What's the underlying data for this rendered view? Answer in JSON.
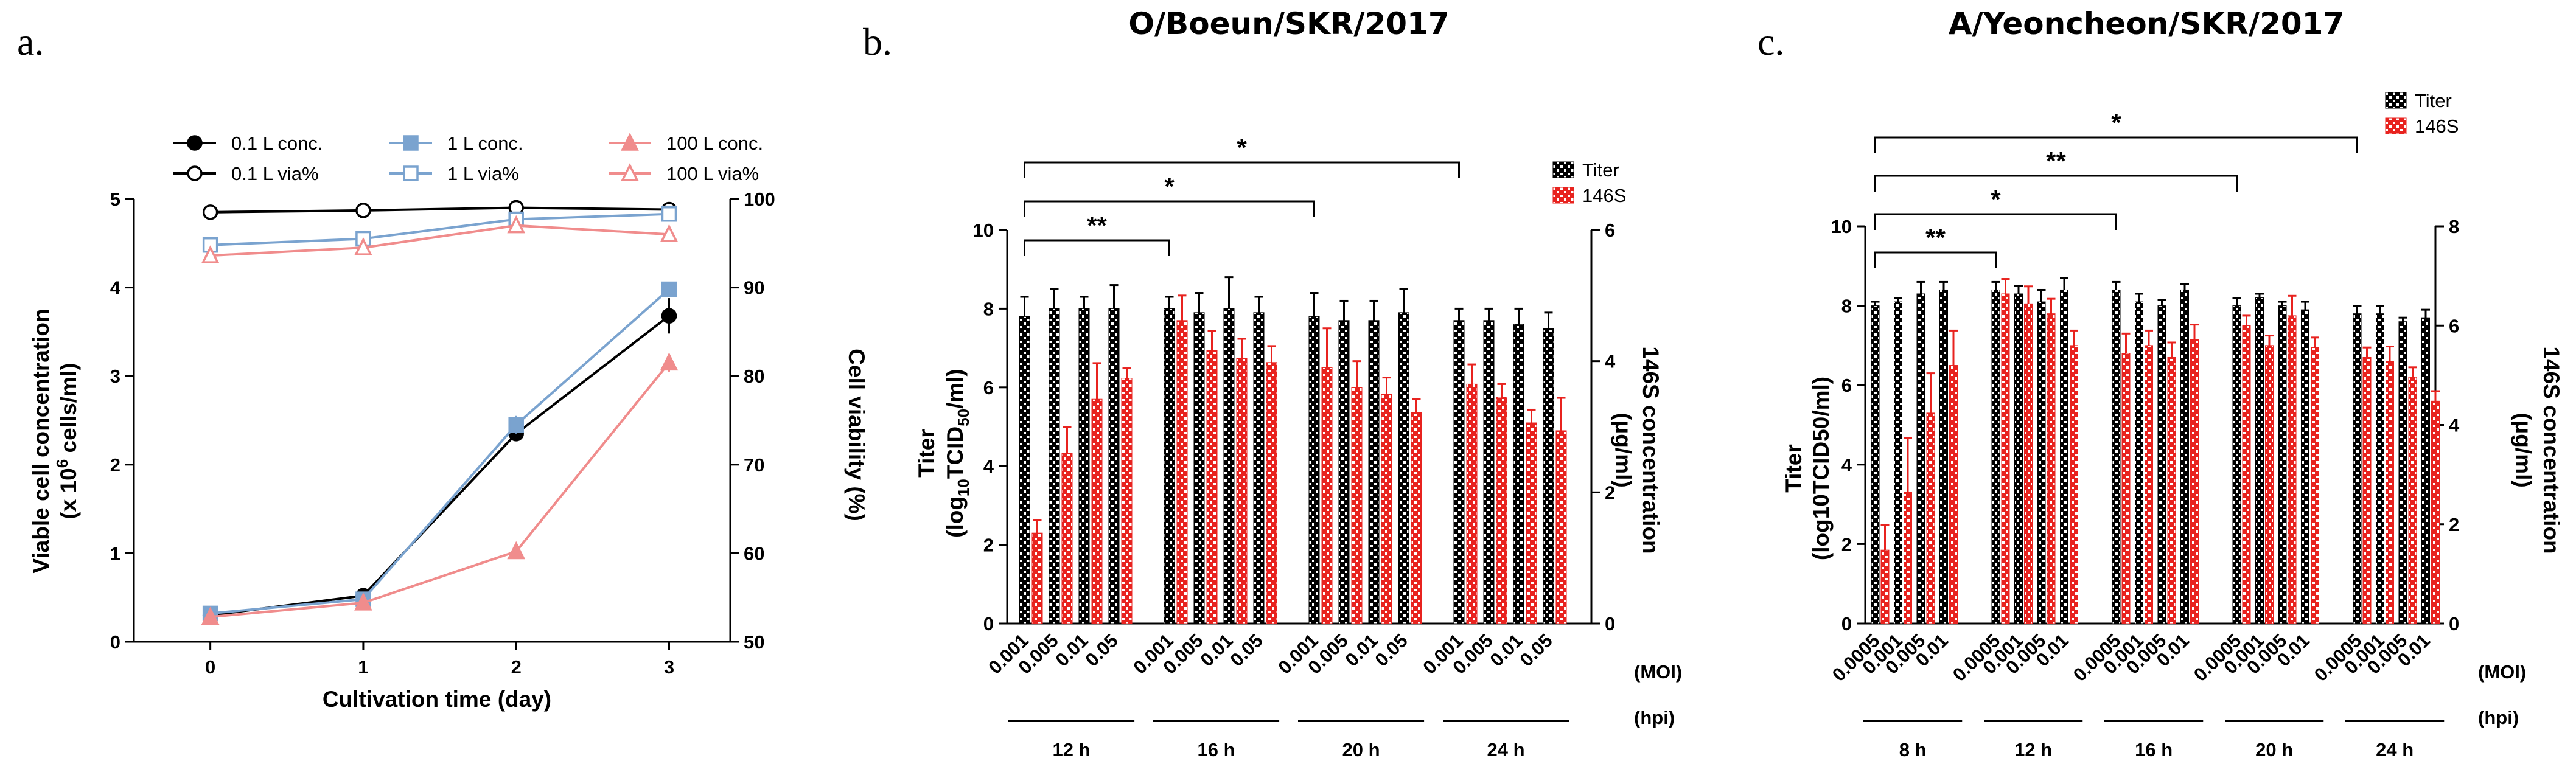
{
  "chart_data": [
    {
      "panel": "a.",
      "type": "line",
      "title": "",
      "xlabel": "Cultivation time (day)",
      "ylabel_left": "Viable cell concentration",
      "ylabel_left_unit": "(x 10^6 cells/ml)",
      "ylabel_right": "Cell viability (%)",
      "x": [
        0,
        1,
        2,
        3
      ],
      "x_ticks": [
        "0",
        "1",
        "2",
        "3"
      ],
      "xlim": [
        -0.5,
        3.4
      ],
      "ylim_left": [
        0,
        5
      ],
      "y_left_ticks": [
        "0",
        "1",
        "2",
        "3",
        "4",
        "5"
      ],
      "ylim_right": [
        50,
        100
      ],
      "y_right_ticks": [
        "50",
        "60",
        "70",
        "80",
        "90",
        "100"
      ],
      "series": [
        {
          "name": "0.1 L conc.",
          "axis": "left",
          "color": "#000000",
          "marker": "filled-circle",
          "values": [
            0.3,
            0.52,
            2.35,
            3.68
          ],
          "err": [
            0.02,
            0.03,
            0.05,
            0.2
          ]
        },
        {
          "name": "1 L conc.",
          "axis": "left",
          "color": "#7aa3cf",
          "marker": "filled-square",
          "values": [
            0.32,
            0.48,
            2.45,
            3.98
          ],
          "err": [
            0.02,
            0.03,
            0.1,
            0.05
          ]
        },
        {
          "name": "100 L conc.",
          "axis": "left",
          "color": "#f08c8c",
          "marker": "filled-triangle",
          "values": [
            0.28,
            0.44,
            1.02,
            3.15
          ],
          "err": [
            0.02,
            0.03,
            0.04,
            0.1
          ]
        },
        {
          "name": "0.1 L via%",
          "axis": "right",
          "color": "#000000",
          "marker": "open-circle",
          "values": [
            98.5,
            98.7,
            99.0,
            98.8
          ],
          "err": [
            0.2,
            0.2,
            0.2,
            0.3
          ]
        },
        {
          "name": "1 L via%",
          "axis": "right",
          "color": "#7aa3cf",
          "marker": "open-square",
          "values": [
            94.8,
            95.5,
            97.7,
            98.3
          ],
          "err": [
            0.4,
            0.3,
            0.4,
            0.3
          ]
        },
        {
          "name": "100 L via%",
          "axis": "right",
          "color": "#f08c8c",
          "marker": "open-triangle",
          "values": [
            93.6,
            94.5,
            97.0,
            96.0
          ],
          "err": [
            0.3,
            0.3,
            0.3,
            0.3
          ]
        }
      ],
      "legend_position": "top"
    },
    {
      "panel": "b.",
      "type": "bar",
      "title": "O/Boeun/SKR/2017",
      "ylabel_left": "Titer",
      "ylabel_left_unit": "(log10TCID50/ml)",
      "ylabel_right": "146S concentration",
      "ylabel_right_unit": "(μg/ml)",
      "ylim_left": [
        0,
        10
      ],
      "y_left_ticks": [
        "0",
        "2",
        "4",
        "6",
        "8",
        "10"
      ],
      "ylim_right": [
        0,
        6
      ],
      "y_right_ticks": [
        "0",
        "2",
        "4",
        "6"
      ],
      "moi_axis_label": "(MOI)",
      "hpi_axis_label": "(hpi)",
      "groups": [
        {
          "hpi": "12 h",
          "moi": [
            "0.001",
            "0.005",
            "0.01",
            "0.05"
          ],
          "titer": [
            7.8,
            8.0,
            8.0,
            8.0
          ],
          "titer_err": [
            0.5,
            0.5,
            0.3,
            0.6
          ],
          "s146": [
            1.38,
            2.6,
            3.42,
            3.74
          ],
          "s146_err": [
            0.2,
            0.4,
            0.55,
            0.15
          ]
        },
        {
          "hpi": "16 h",
          "moi": [
            "0.001",
            "0.005",
            "0.01",
            "0.05"
          ],
          "titer": [
            8.0,
            7.9,
            8.0,
            7.9
          ],
          "titer_err": [
            0.3,
            0.5,
            0.8,
            0.4
          ],
          "s146": [
            4.62,
            4.16,
            4.04,
            3.98
          ],
          "s146_err": [
            0.38,
            0.3,
            0.3,
            0.25
          ]
        },
        {
          "hpi": "20 h",
          "moi": [
            "0.001",
            "0.005",
            "0.01",
            "0.05"
          ],
          "titer": [
            7.8,
            7.7,
            7.7,
            7.9
          ],
          "titer_err": [
            0.6,
            0.5,
            0.5,
            0.6
          ],
          "s146": [
            3.9,
            3.6,
            3.5,
            3.22
          ],
          "s146_err": [
            0.6,
            0.4,
            0.25,
            0.2
          ]
        },
        {
          "hpi": "24 h",
          "moi": [
            "0.001",
            "0.005",
            "0.01",
            "0.05"
          ],
          "titer": [
            7.7,
            7.7,
            7.6,
            7.5
          ],
          "titer_err": [
            0.3,
            0.3,
            0.4,
            0.4
          ],
          "s146": [
            3.65,
            3.45,
            3.06,
            2.94
          ],
          "s146_err": [
            0.3,
            0.2,
            0.2,
            0.5
          ]
        }
      ],
      "legend": [
        "Titer",
        "146S"
      ],
      "legend_position": "top-right",
      "significance": [
        {
          "label": "**",
          "from_group": 0,
          "to_group": 1
        },
        {
          "label": "*",
          "from_group": 0,
          "to_group": 2
        },
        {
          "label": "*",
          "from_group": 0,
          "to_group": 3
        }
      ]
    },
    {
      "panel": "c.",
      "type": "bar",
      "title": "A/Yeoncheon/SKR/2017",
      "ylabel_left": "Titer",
      "ylabel_left_unit": "(log10TCID50/ml)",
      "ylabel_right": "146S concentration",
      "ylabel_right_unit": "(μg/ml)",
      "ylim_left": [
        0,
        10
      ],
      "y_left_ticks": [
        "0",
        "2",
        "4",
        "6",
        "8",
        "10"
      ],
      "ylim_right": [
        0,
        8
      ],
      "y_right_ticks": [
        "0",
        "2",
        "4",
        "6",
        "8"
      ],
      "moi_axis_label": "(MOI)",
      "hpi_axis_label": "(hpi)",
      "groups": [
        {
          "hpi": "8 h",
          "moi": [
            "0.0005",
            "0.001",
            "0.005",
            "0.01"
          ],
          "titer": [
            8.0,
            8.1,
            8.3,
            8.4
          ],
          "titer_err": [
            0.1,
            0.1,
            0.3,
            0.2
          ],
          "s146": [
            1.48,
            2.64,
            4.24,
            5.2
          ],
          "s146_err": [
            0.5,
            1.1,
            0.8,
            0.7
          ]
        },
        {
          "hpi": "12 h",
          "moi": [
            "0.0005",
            "0.001",
            "0.005",
            "0.01"
          ],
          "titer": [
            8.4,
            8.3,
            8.1,
            8.4
          ],
          "titer_err": [
            0.2,
            0.2,
            0.3,
            0.3
          ],
          "s146": [
            6.64,
            6.44,
            6.24,
            5.6
          ],
          "s146_err": [
            0.3,
            0.35,
            0.3,
            0.3
          ]
        },
        {
          "hpi": "16 h",
          "moi": [
            "0.0005",
            "0.001",
            "0.005",
            "0.01"
          ],
          "titer": [
            8.4,
            8.1,
            8.0,
            8.4
          ],
          "titer_err": [
            0.2,
            0.2,
            0.15,
            0.15
          ],
          "s146": [
            5.44,
            5.6,
            5.36,
            5.72
          ],
          "s146_err": [
            0.4,
            0.3,
            0.3,
            0.3
          ]
        },
        {
          "hpi": "20 h",
          "moi": [
            "0.0005",
            "0.001",
            "0.005",
            "0.01"
          ],
          "titer": [
            8.0,
            8.2,
            8.0,
            7.9
          ],
          "titer_err": [
            0.2,
            0.1,
            0.1,
            0.2
          ],
          "s146": [
            6.0,
            5.6,
            6.2,
            5.56
          ],
          "s146_err": [
            0.2,
            0.2,
            0.4,
            0.2
          ]
        },
        {
          "hpi": "24 h",
          "moi": [
            "0.0005",
            "0.001",
            "0.005",
            "0.01"
          ],
          "titer": [
            7.8,
            7.8,
            7.6,
            7.7
          ],
          "titer_err": [
            0.2,
            0.2,
            0.1,
            0.2
          ],
          "s146": [
            5.36,
            5.28,
            4.96,
            4.48
          ],
          "s146_err": [
            0.2,
            0.3,
            0.2,
            0.2
          ]
        }
      ],
      "legend": [
        "Titer",
        "146S"
      ],
      "legend_position": "top-right",
      "significance": [
        {
          "label": "**",
          "from_group": 0,
          "to_group": 1
        },
        {
          "label": "*",
          "from_group": 0,
          "to_group": 2
        },
        {
          "label": "**",
          "from_group": 0,
          "to_group": 3
        },
        {
          "label": "*",
          "from_group": 0,
          "to_group": 4
        }
      ]
    }
  ],
  "colors": {
    "titer": "#000000",
    "s146": "#e8231f"
  }
}
